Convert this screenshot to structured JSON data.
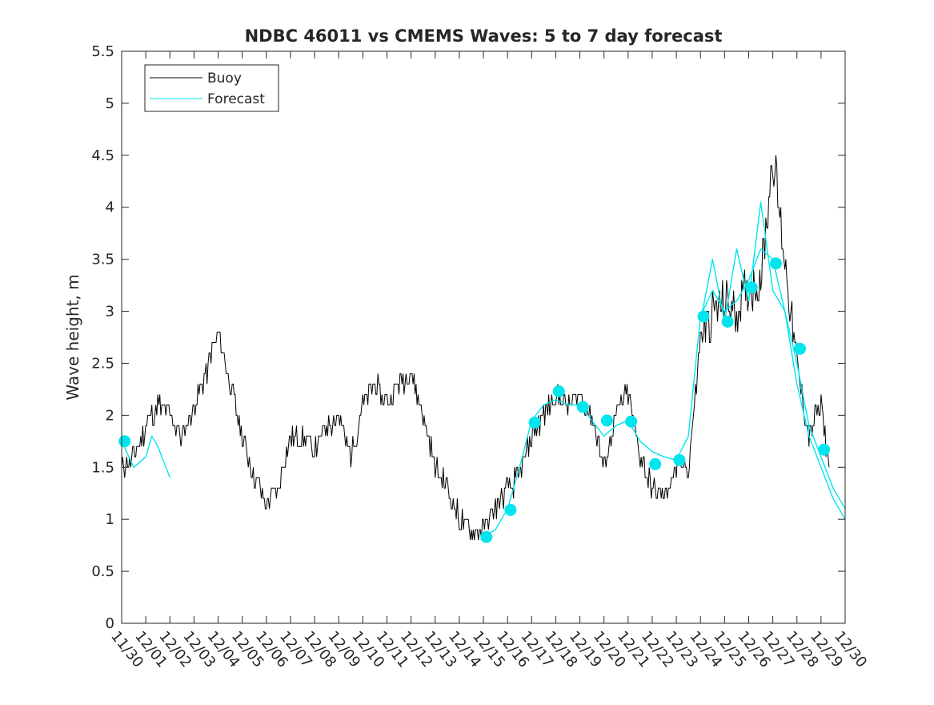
{
  "chart_data": {
    "type": "line",
    "title": "NDBC 46011 vs CMEMS Waves: 5 to 7 day forecast",
    "xlabel": "",
    "ylabel": "Wave height, m",
    "x_start": "11/30",
    "x_end": "12/30",
    "xlim": [
      "11/30",
      "12/30"
    ],
    "x_tick_labels": [
      "11/30",
      "12/01",
      "12/02",
      "12/03",
      "12/04",
      "12/05",
      "12/06",
      "12/07",
      "12/08",
      "12/09",
      "12/10",
      "12/11",
      "12/12",
      "12/13",
      "12/14",
      "12/15",
      "12/16",
      "12/17",
      "12/18",
      "12/19",
      "12/20",
      "12/21",
      "12/22",
      "12/23",
      "12/24",
      "12/25",
      "12/26",
      "12/27",
      "12/28",
      "12/29",
      "12/30"
    ],
    "ylim": [
      0,
      5.5
    ],
    "y_ticks": [
      0,
      0.5,
      1,
      1.5,
      2,
      2.5,
      3,
      3.5,
      4,
      4.5,
      5,
      5.5
    ],
    "y_tick_labels": [
      "0",
      "0.5",
      "1",
      "1.5",
      "2",
      "2.5",
      "3",
      "3.5",
      "4",
      "4.5",
      "5",
      "5.5"
    ],
    "grid": false,
    "legend_position": "top-left",
    "series": [
      {
        "name": "Buoy",
        "color": "#000000",
        "style": "noisy-line",
        "x": [
          "11/30 00:00",
          "11/30 12:00",
          "12/01 00:00",
          "12/01 12:00",
          "12/02 00:00",
          "12/02 12:00",
          "12/03 00:00",
          "12/03 12:00",
          "12/04 00:00",
          "12/04 12:00",
          "12/05 00:00",
          "12/05 12:00",
          "12/06 00:00",
          "12/06 12:00",
          "12/07 00:00",
          "12/07 12:00",
          "12/08 00:00",
          "12/08 12:00",
          "12/09 00:00",
          "12/09 12:00",
          "12/10 00:00",
          "12/10 12:00",
          "12/11 00:00",
          "12/11 12:00",
          "12/12 00:00",
          "12/12 12:00",
          "12/13 00:00",
          "12/13 12:00",
          "12/14 00:00",
          "12/14 12:00",
          "12/15 00:00",
          "12/15 12:00",
          "12/16 00:00",
          "12/16 12:00",
          "12/17 00:00",
          "12/17 12:00",
          "12/18 00:00",
          "12/18 12:00",
          "12/19 00:00",
          "12/19 12:00",
          "12/20 00:00",
          "12/20 12:00",
          "12/21 00:00",
          "12/21 12:00",
          "12/22 00:00",
          "12/22 12:00",
          "12/23 00:00",
          "12/23 12:00",
          "12/24 00:00",
          "12/24 12:00",
          "12/25 00:00",
          "12/25 12:00",
          "12/26 00:00",
          "12/26 12:00",
          "12/27 00:00",
          "12/27 12:00",
          "12/28 00:00",
          "12/28 12:00",
          "12/29 00:00",
          "12/29 08:00"
        ],
        "y": [
          1.5,
          1.6,
          1.9,
          2.1,
          2.0,
          1.8,
          2.1,
          2.4,
          2.8,
          2.3,
          1.8,
          1.4,
          1.15,
          1.3,
          1.8,
          1.8,
          1.65,
          1.9,
          2.0,
          1.6,
          2.1,
          2.3,
          2.1,
          2.3,
          2.4,
          2.0,
          1.5,
          1.3,
          1.0,
          0.9,
          0.9,
          1.1,
          1.3,
          1.4,
          1.8,
          2.0,
          2.2,
          2.1,
          2.2,
          2.0,
          1.5,
          2.0,
          2.2,
          1.6,
          1.3,
          1.2,
          1.5,
          1.5,
          2.7,
          3.0,
          3.1,
          3.0,
          3.2,
          3.3,
          4.5,
          3.5,
          2.5,
          1.8,
          2.1,
          1.5
        ]
      },
      {
        "name": "Forecast",
        "color": "#00e5ee",
        "segments": [
          {
            "x": [
              "11/30 00:00",
              "11/30 12:00",
              "12/01 00:00",
              "12/01 06:00",
              "12/01 12:00",
              "12/02 00:00"
            ],
            "y": [
              1.75,
              1.5,
              1.6,
              1.8,
              1.7,
              1.4
            ]
          },
          {
            "x": [
              "12/15 00:00",
              "12/15 12:00",
              "12/16 00:00",
              "12/16 12:00",
              "12/17 00:00",
              "12/17 12:00",
              "12/18 00:00",
              "12/18 12:00",
              "12/19 00:00",
              "12/19 12:00",
              "12/20 00:00",
              "12/20 12:00",
              "12/21 00:00",
              "12/21 12:00",
              "12/22 00:00",
              "12/22 12:00",
              "12/23 00:00",
              "12/23 12:00",
              "12/24 00:00",
              "12/24 12:00",
              "12/25 00:00",
              "12/25 12:00",
              "12/26 00:00",
              "12/26 12:00",
              "12/27 00:00",
              "12/27 12:00",
              "12/28 00:00",
              "12/28 12:00",
              "12/29 00:00",
              "12/29 12:00",
              "12/30 00:00"
            ],
            "y": [
              0.83,
              0.9,
              1.1,
              1.5,
              1.95,
              2.1,
              2.15,
              2.1,
              2.1,
              1.95,
              1.8,
              1.9,
              1.95,
              1.75,
              1.65,
              1.6,
              1.57,
              1.8,
              2.95,
              3.2,
              3.0,
              3.1,
              3.3,
              3.6,
              3.5,
              3.0,
              2.5,
              1.9,
              1.6,
              1.3,
              1.1
            ]
          },
          {
            "x": [
              "12/24 00:00",
              "12/24 12:00",
              "12/25 00:00",
              "12/25 12:00",
              "12/26 00:00",
              "12/26 12:00",
              "12/27 00:00",
              "12/27 12:00",
              "12/28 00:00",
              "12/28 12:00",
              "12/29 00:00",
              "12/29 12:00",
              "12/30 00:00"
            ],
            "y": [
              2.9,
              3.5,
              2.9,
              3.6,
              3.1,
              4.05,
              3.2,
              3.0,
              2.3,
              1.8,
              1.5,
              1.2,
              1.0
            ]
          }
        ]
      },
      {
        "name": "",
        "color": "#00e5ee",
        "style": "markers",
        "x": [
          "11/30 03:00",
          "12/15 03:00",
          "12/16 03:00",
          "12/17 03:00",
          "12/18 03:00",
          "12/19 03:00",
          "12/20 03:00",
          "12/21 03:00",
          "12/22 03:00",
          "12/23 03:00",
          "12/24 03:00",
          "12/25 03:00",
          "12/26 03:00",
          "12/27 03:00",
          "12/28 03:00",
          "12/29 03:00"
        ],
        "y": [
          1.75,
          0.83,
          1.09,
          1.93,
          2.23,
          2.08,
          1.95,
          1.94,
          1.53,
          1.57,
          2.95,
          2.9,
          3.23,
          3.46,
          2.64,
          1.67
        ]
      }
    ]
  },
  "legend": {
    "items": [
      {
        "label": "Buoy",
        "color": "#000000"
      },
      {
        "label": "Forecast",
        "color": "#00e5ee"
      }
    ]
  }
}
